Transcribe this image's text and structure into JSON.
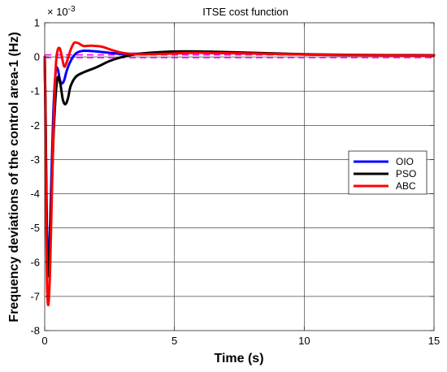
{
  "chart_data": {
    "type": "line",
    "title": "ITSE cost function",
    "xlabel": "Time (s)",
    "ylabel": "Frequency deviations of the control area-1 (Hz)",
    "exponent_label": "× 10",
    "exponent_power": "-3",
    "xlim": [
      0,
      15
    ],
    "ylim": [
      -8,
      1
    ],
    "xticks": [
      0,
      5,
      10,
      15
    ],
    "yticks": [
      -8,
      -7,
      -6,
      -5,
      -4,
      -3,
      -2,
      -1,
      0,
      1
    ],
    "grid": true,
    "legend_position": "right",
    "series": [
      {
        "name": "OIO",
        "color": "#0000ff",
        "x": [
          0,
          0.03,
          0.07,
          0.12,
          0.18,
          0.25,
          0.33,
          0.42,
          0.5,
          0.58,
          0.66,
          0.75,
          0.85,
          1.0,
          1.2,
          1.5,
          2.0,
          2.5,
          3.0,
          4.0,
          5.0,
          6.0,
          8.0,
          10.0,
          12.0,
          15.0
        ],
        "y": [
          0,
          -1.5,
          -4.5,
          -6.1,
          -5.6,
          -3.8,
          -1.7,
          -0.45,
          -0.35,
          -0.65,
          -0.78,
          -0.68,
          -0.4,
          -0.12,
          0.1,
          0.18,
          0.16,
          0.12,
          0.09,
          0.1,
          0.12,
          0.12,
          0.1,
          0.07,
          0.05,
          0.04
        ]
      },
      {
        "name": "PSO",
        "color": "#000000",
        "x": [
          0,
          0.03,
          0.07,
          0.12,
          0.18,
          0.25,
          0.33,
          0.42,
          0.5,
          0.6,
          0.7,
          0.8,
          0.9,
          1.0,
          1.2,
          1.5,
          2.0,
          2.5,
          3.0,
          3.5,
          4.0,
          5.0,
          6.0,
          8.0,
          10.0,
          12.0,
          15.0
        ],
        "y": [
          0,
          -1.4,
          -4.4,
          -6.3,
          -6.0,
          -4.4,
          -2.5,
          -1.15,
          -0.6,
          -0.78,
          -1.25,
          -1.38,
          -1.2,
          -0.85,
          -0.58,
          -0.45,
          -0.3,
          -0.12,
          0.0,
          0.08,
          0.12,
          0.16,
          0.16,
          0.12,
          0.08,
          0.06,
          0.05
        ]
      },
      {
        "name": "ABC",
        "color": "#ff0000",
        "x": [
          0,
          0.02,
          0.05,
          0.09,
          0.14,
          0.2,
          0.27,
          0.35,
          0.43,
          0.5,
          0.58,
          0.65,
          0.75,
          0.85,
          0.95,
          1.05,
          1.15,
          1.3,
          1.5,
          1.8,
          2.2,
          2.6,
          3.0,
          3.5,
          4.0,
          5.0,
          6.0,
          8.0,
          10.0,
          12.0,
          15.0
        ],
        "y": [
          0,
          -1.2,
          -4.3,
          -6.6,
          -7.25,
          -6.4,
          -4.2,
          -1.8,
          -0.25,
          0.2,
          0.25,
          0.05,
          -0.28,
          -0.15,
          0.1,
          0.3,
          0.42,
          0.4,
          0.32,
          0.33,
          0.3,
          0.2,
          0.12,
          0.08,
          0.08,
          0.1,
          0.12,
          0.1,
          0.07,
          0.05,
          0.04
        ]
      }
    ],
    "reference_lines": [
      {
        "y": 0.06,
        "color": "#ff00ff",
        "style": "dashed"
      },
      {
        "y": -0.02,
        "color": "#ff00ff",
        "style": "dashed"
      }
    ]
  }
}
